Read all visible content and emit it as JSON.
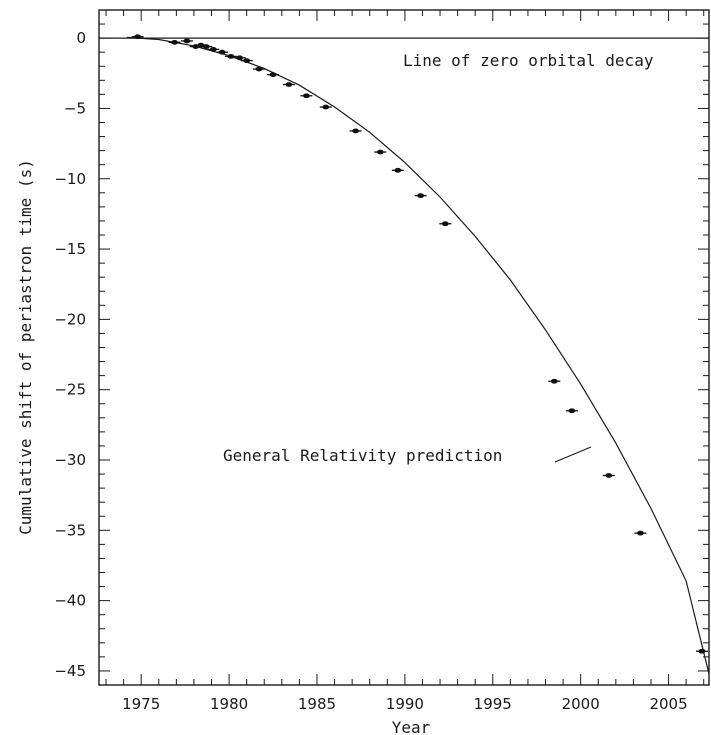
{
  "chart_data": {
    "type": "scatter",
    "xlabel": "Year",
    "ylabel": "Cumulative shift of periastron time (s)",
    "xlim": [
      1972.6,
      2007.3
    ],
    "ylim": [
      -46,
      2
    ],
    "x_ticks": [
      "1975",
      "1980",
      "1985",
      "1990",
      "1995",
      "2000",
      "2005"
    ],
    "y_ticks": [
      "0",
      "−5",
      "−10",
      "−15",
      "−20",
      "−25",
      "−30",
      "−35",
      "−40",
      "−45"
    ],
    "zero_line_label": "Line of zero orbital decay",
    "prediction_label": "General Relativity prediction",
    "series": [
      {
        "type": "scatter",
        "x": [
          1974.8,
          1976.9,
          1977.6,
          1978.1,
          1978.4,
          1978.7,
          1979.1,
          1979.6,
          1980.1,
          1980.6,
          1981.0,
          1981.7,
          1982.5,
          1983.4,
          1984.4,
          1985.5,
          1987.2,
          1988.6,
          1989.6,
          1990.9,
          1992.3,
          1998.5,
          1999.5,
          2001.6,
          2003.4,
          2006.9
        ],
        "y": [
          0.1,
          -0.3,
          -0.2,
          -0.6,
          -0.5,
          -0.6,
          -0.8,
          -1.0,
          -1.3,
          -1.4,
          -1.6,
          -2.2,
          -2.6,
          -3.3,
          -4.1,
          -4.9,
          -6.6,
          -8.1,
          -9.4,
          -11.2,
          -13.2,
          -24.4,
          -26.5,
          -31.1,
          -35.2,
          -43.6
        ]
      },
      {
        "type": "line",
        "x": [
          1974.2,
          1976,
          1978,
          1980,
          1982,
          1984,
          1986,
          1988,
          1990,
          1992,
          1994,
          1996,
          1998,
          2000,
          2002,
          2004,
          2006,
          2007.3
        ],
        "y": [
          0.05,
          -0.1,
          -0.55,
          -1.25,
          -2.15,
          -3.35,
          -4.9,
          -6.7,
          -8.85,
          -11.3,
          -14.1,
          -17.2,
          -20.75,
          -24.6,
          -28.8,
          -33.45,
          -38.6,
          -45.2
        ]
      }
    ]
  }
}
